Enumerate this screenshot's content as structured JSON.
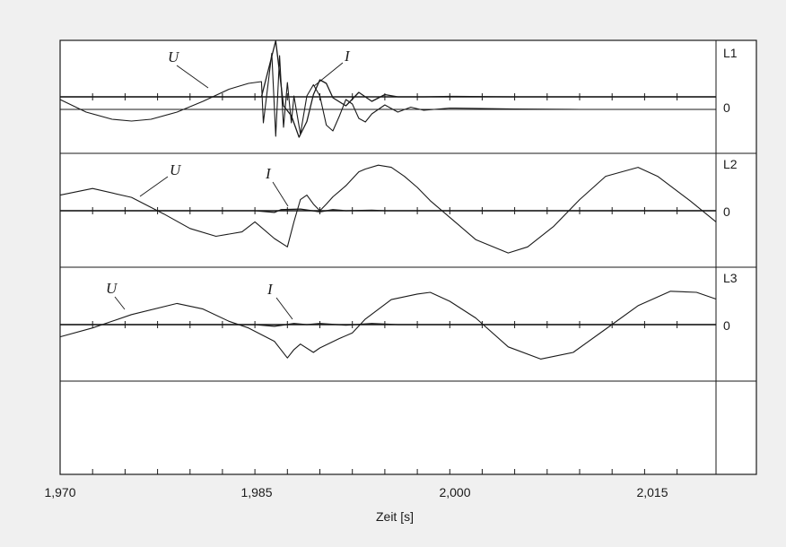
{
  "chart_data": {
    "type": "line",
    "xlabel": "Zeit [s]",
    "x_ticks": [
      "1,970",
      "1,985",
      "2,000",
      "2,015"
    ],
    "x_tick_values": [
      1.97,
      1.985,
      2.0,
      2.015
    ],
    "xlim": [
      1.97,
      2.0205
    ],
    "panels": [
      {
        "label": "L1",
        "zero_label": "0",
        "u_label": "U",
        "i_label": "I",
        "series": [
          {
            "name": "U",
            "x": [
              1.97,
              1.972,
              1.974,
              1.9755,
              1.977,
              1.979,
              1.981,
              1.983,
              1.9845,
              1.9855,
              1.98565,
              1.9863,
              1.9866,
              1.9869,
              1.9872,
              1.9875,
              1.9878,
              1.988,
              1.9885,
              1.989,
              1.9895,
              1.99,
              1.9905,
              1.991,
              1.9915,
              1.992,
              1.9925,
              1.993,
              1.9935,
              1.994,
              1.995,
              1.996,
              1.997,
              1.998,
              2.0,
              2.005,
              2.01,
              2.015,
              2.0205
            ],
            "y": [
              0.22,
              -0.06,
              -0.22,
              -0.26,
              -0.22,
              -0.06,
              0.18,
              0.45,
              0.58,
              0.62,
              -0.3,
              1.25,
              -0.6,
              1.2,
              -0.4,
              0.6,
              -0.3,
              0.3,
              -0.55,
              0.3,
              0.55,
              0.3,
              -0.35,
              -0.48,
              -0.15,
              0.22,
              0.12,
              -0.2,
              -0.28,
              -0.1,
              0.1,
              -0.06,
              0.05,
              -0.02,
              0.03,
              0.01,
              0.0,
              0.0,
              0.0
            ]
          },
          {
            "name": "I",
            "x": [
              1.97,
              1.9855,
              1.9866,
              1.9872,
              1.9878,
              1.9884,
              1.989,
              1.9895,
              1.99,
              1.9905,
              1.991,
              1.992,
              1.993,
              1.994,
              1.995,
              1.996,
              1.998,
              2.0,
              2.005,
              2.01,
              2.015,
              2.0205
            ],
            "y": [
              0.0,
              0.0,
              1.25,
              -0.2,
              -0.42,
              -0.9,
              -0.55,
              0.05,
              0.38,
              0.3,
              -0.02,
              -0.2,
              0.1,
              -0.1,
              0.05,
              0.0,
              0.0,
              0.01,
              0.0,
              0.0,
              0.0,
              0.0
            ]
          }
        ]
      },
      {
        "label": "L2",
        "zero_label": "0",
        "u_label": "U",
        "i_label": "I",
        "series": [
          {
            "name": "U",
            "x": [
              1.97,
              1.9725,
              1.9755,
              1.978,
              1.98,
              1.982,
              1.984,
              1.985,
              1.9865,
              1.9875,
              1.988,
              1.9885,
              1.989,
              1.9895,
              1.99,
              1.9905,
              1.991,
              1.992,
              1.993,
              1.9935,
              1.9945,
              1.9955,
              1.9965,
              1.9975,
              1.9985,
              2.0,
              2.002,
              2.0045,
              2.006,
              2.008,
              2.01,
              2.012,
              2.0145,
              2.016,
              2.0185,
              2.0205
            ],
            "y": [
              0.28,
              0.4,
              0.24,
              -0.06,
              -0.32,
              -0.46,
              -0.38,
              -0.2,
              -0.5,
              -0.65,
              -0.2,
              0.2,
              0.28,
              0.12,
              0.0,
              0.12,
              0.25,
              0.45,
              0.7,
              0.75,
              0.82,
              0.78,
              0.62,
              0.42,
              0.18,
              -0.12,
              -0.52,
              -0.76,
              -0.65,
              -0.28,
              0.2,
              0.62,
              0.78,
              0.62,
              0.18,
              -0.2
            ]
          },
          {
            "name": "I",
            "x": [
              1.97,
              1.985,
              1.9865,
              1.987,
              1.9885,
              1.99,
              1.991,
              1.992,
              1.994,
              1.995,
              2.0,
              2.01,
              2.0205
            ],
            "y": [
              0.0,
              0.0,
              -0.03,
              0.02,
              0.03,
              -0.02,
              0.02,
              0.0,
              0.01,
              0.0,
              0.0,
              0.0,
              0.0
            ]
          }
        ]
      },
      {
        "label": "L3",
        "zero_label": "0",
        "u_label": "U",
        "i_label": "I",
        "series": [
          {
            "name": "U",
            "x": [
              1.97,
              1.9725,
              1.9755,
              1.979,
              1.981,
              1.983,
              1.9845,
              1.9865,
              1.9875,
              1.988,
              1.9885,
              1.9895,
              1.99,
              1.9915,
              1.9925,
              1.9935,
              1.9955,
              1.9975,
              1.9985,
              2.0,
              2.002,
              2.0045,
              2.007,
              2.0095,
              2.012,
              2.0145,
              2.017,
              2.019,
              2.0205
            ],
            "y": [
              -0.22,
              -0.06,
              0.18,
              0.38,
              0.28,
              0.06,
              -0.06,
              -0.3,
              -0.6,
              -0.45,
              -0.35,
              -0.5,
              -0.42,
              -0.25,
              -0.15,
              0.1,
              0.45,
              0.55,
              0.58,
              0.42,
              0.12,
              -0.4,
              -0.62,
              -0.5,
              -0.08,
              0.34,
              0.6,
              0.58,
              0.46
            ]
          },
          {
            "name": "I",
            "x": [
              1.97,
              1.985,
              1.9865,
              1.988,
              1.989,
              1.99,
              1.992,
              1.994,
              1.996,
              2.0,
              2.0205
            ],
            "y": [
              0.0,
              0.0,
              -0.03,
              0.02,
              0.0,
              0.02,
              -0.01,
              0.02,
              0.0,
              0.0,
              0.0
            ]
          }
        ]
      }
    ],
    "grid": false,
    "legend": "none"
  }
}
